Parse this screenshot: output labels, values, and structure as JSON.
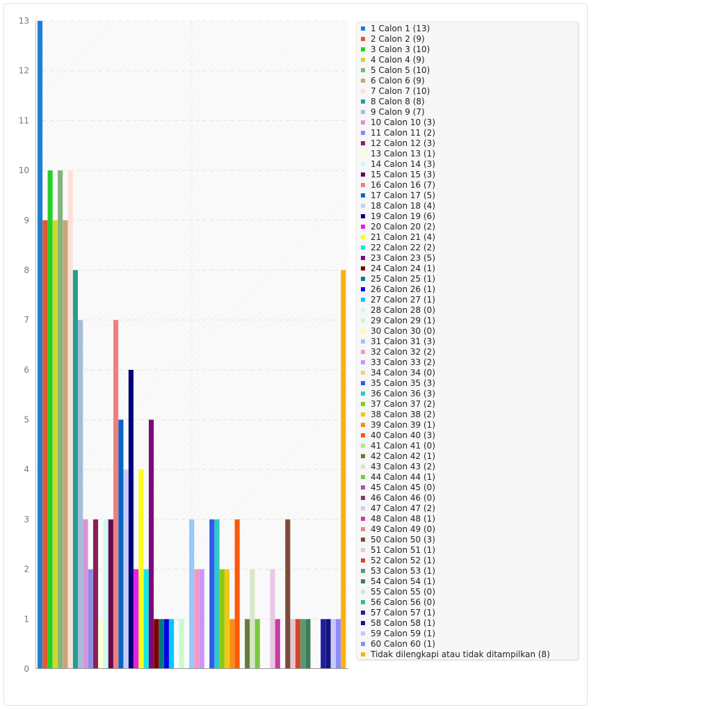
{
  "chart_data": {
    "type": "bar",
    "ylim": [
      0,
      13
    ],
    "yticks": [
      "0",
      "1",
      "2",
      "3",
      "4",
      "5",
      "6",
      "7",
      "8",
      "9",
      "10",
      "11",
      "12",
      "13"
    ],
    "grid": true,
    "legend_position": "right",
    "series": [
      {
        "name": "1 Calon 1 (13)",
        "value": 13,
        "color": "#1f7fd0"
      },
      {
        "name": "2 Calon 2 (9)",
        "value": 9,
        "color": "#e8582a"
      },
      {
        "name": "3 Calon 3 (10)",
        "value": 10,
        "color": "#26cf26"
      },
      {
        "name": "4 Calon 4 (9)",
        "value": 9,
        "color": "#cfd82a"
      },
      {
        "name": "5 Calon 5 (10)",
        "value": 10,
        "color": "#86b27c"
      },
      {
        "name": "6 Calon 6 (9)",
        "value": 9,
        "color": "#c8a57c"
      },
      {
        "name": "7 Calon 7 (10)",
        "value": 10,
        "color": "#fde0d6"
      },
      {
        "name": "8 Calon 8 (8)",
        "value": 8,
        "color": "#1fa090"
      },
      {
        "name": "9 Calon 9 (7)",
        "value": 7,
        "color": "#a6bcd8"
      },
      {
        "name": "10 Calon 10 (3)",
        "value": 3,
        "color": "#d794d8"
      },
      {
        "name": "11 Calon 11 (2)",
        "value": 2,
        "color": "#8c8ce8"
      },
      {
        "name": "12 Calon 12 (3)",
        "value": 3,
        "color": "#8c1f5a"
      },
      {
        "name": "13 Calon 13 (1)",
        "value": 1,
        "color": "#fbffcf"
      },
      {
        "name": "14 Calon 14 (3)",
        "value": 3,
        "color": "#cff8f0"
      },
      {
        "name": "15 Calon 15 (3)",
        "value": 3,
        "color": "#640a4e"
      },
      {
        "name": "16 Calon 16 (7)",
        "value": 7,
        "color": "#ef7f7f"
      },
      {
        "name": "17 Calon 17 (5)",
        "value": 5,
        "color": "#0a64c8"
      },
      {
        "name": "18 Calon 18 (4)",
        "value": 4,
        "color": "#c8cdf5"
      },
      {
        "name": "19 Calon 19 (6)",
        "value": 6,
        "color": "#00007f"
      },
      {
        "name": "20 Calon 20 (2)",
        "value": 2,
        "color": "#e61ee6"
      },
      {
        "name": "21 Calon 21 (4)",
        "value": 4,
        "color": "#fbfb14"
      },
      {
        "name": "22 Calon 22 (2)",
        "value": 2,
        "color": "#14e6e6"
      },
      {
        "name": "23 Calon 23 (5)",
        "value": 5,
        "color": "#7d0a7d"
      },
      {
        "name": "24 Calon 24 (1)",
        "value": 1,
        "color": "#7d0000"
      },
      {
        "name": "25 Calon 25 (1)",
        "value": 1,
        "color": "#007d7d"
      },
      {
        "name": "26 Calon 26 (1)",
        "value": 1,
        "color": "#0000e6"
      },
      {
        "name": "27 Calon 27 (1)",
        "value": 1,
        "color": "#00c8fb"
      },
      {
        "name": "28 Calon 28 (0)",
        "value": 0,
        "color": "#c8fbfb"
      },
      {
        "name": "29 Calon 29 (1)",
        "value": 1,
        "color": "#c8fbc8"
      },
      {
        "name": "30 Calon 30 (0)",
        "value": 0,
        "color": "#fbfba0"
      },
      {
        "name": "31 Calon 31 (3)",
        "value": 3,
        "color": "#96c8fb"
      },
      {
        "name": "32 Calon 32 (2)",
        "value": 2,
        "color": "#f596c8"
      },
      {
        "name": "33 Calon 33 (2)",
        "value": 2,
        "color": "#c896fb"
      },
      {
        "name": "34 Calon 34 (0)",
        "value": 0,
        "color": "#fbc896"
      },
      {
        "name": "35 Calon 35 (3)",
        "value": 3,
        "color": "#2d5af0"
      },
      {
        "name": "36 Calon 36 (3)",
        "value": 3,
        "color": "#2dc8c8"
      },
      {
        "name": "37 Calon 37 (2)",
        "value": 2,
        "color": "#8cc814"
      },
      {
        "name": "38 Calon 38 (2)",
        "value": 2,
        "color": "#f0c814"
      },
      {
        "name": "39 Calon 39 (1)",
        "value": 1,
        "color": "#fb8c14"
      },
      {
        "name": "40 Calon 40 (3)",
        "value": 3,
        "color": "#fb5a0a"
      },
      {
        "name": "41 Calon 41 (0)",
        "value": 0,
        "color": "#b4e68c"
      },
      {
        "name": "42 Calon 42 (1)",
        "value": 1,
        "color": "#647d3c"
      },
      {
        "name": "43 Calon 43 (2)",
        "value": 2,
        "color": "#d8e6c8"
      },
      {
        "name": "44 Calon 44 (1)",
        "value": 1,
        "color": "#7dc83c"
      },
      {
        "name": "45 Calon 45 (0)",
        "value": 0,
        "color": "#a05aa0"
      },
      {
        "name": "46 Calon 46 (0)",
        "value": 0,
        "color": "#7d3c64"
      },
      {
        "name": "47 Calon 47 (2)",
        "value": 2,
        "color": "#e6c8e6"
      },
      {
        "name": "48 Calon 48 (1)",
        "value": 1,
        "color": "#c83ca0"
      },
      {
        "name": "49 Calon 49 (0)",
        "value": 0,
        "color": "#e68c7d"
      },
      {
        "name": "50 Calon 50 (3)",
        "value": 3,
        "color": "#7d4b3c"
      },
      {
        "name": "51 Calon 51 (1)",
        "value": 1,
        "color": "#e6c8d2"
      },
      {
        "name": "52 Calon 52 (1)",
        "value": 1,
        "color": "#d2462d"
      },
      {
        "name": "53 Calon 53 (1)",
        "value": 1,
        "color": "#5a9b6e"
      },
      {
        "name": "54 Calon 54 (1)",
        "value": 1,
        "color": "#3c7d5a"
      },
      {
        "name": "55 Calon 55 (0)",
        "value": 0,
        "color": "#d2e6dc"
      },
      {
        "name": "56 Calon 56 (0)",
        "value": 0,
        "color": "#2dc378"
      },
      {
        "name": "57 Calon 57 (1)",
        "value": 1,
        "color": "#1e1e9b"
      },
      {
        "name": "58 Calon 58 (1)",
        "value": 1,
        "color": "#14147d"
      },
      {
        "name": "59 Calon 59 (1)",
        "value": 1,
        "color": "#c8c8fb"
      },
      {
        "name": "60 Calon 60 (1)",
        "value": 1,
        "color": "#8c8cfb"
      },
      {
        "name": "Tidak dilengkapi atau tidak ditampilkan (8)",
        "value": 8,
        "color": "#fbaf14"
      }
    ]
  }
}
